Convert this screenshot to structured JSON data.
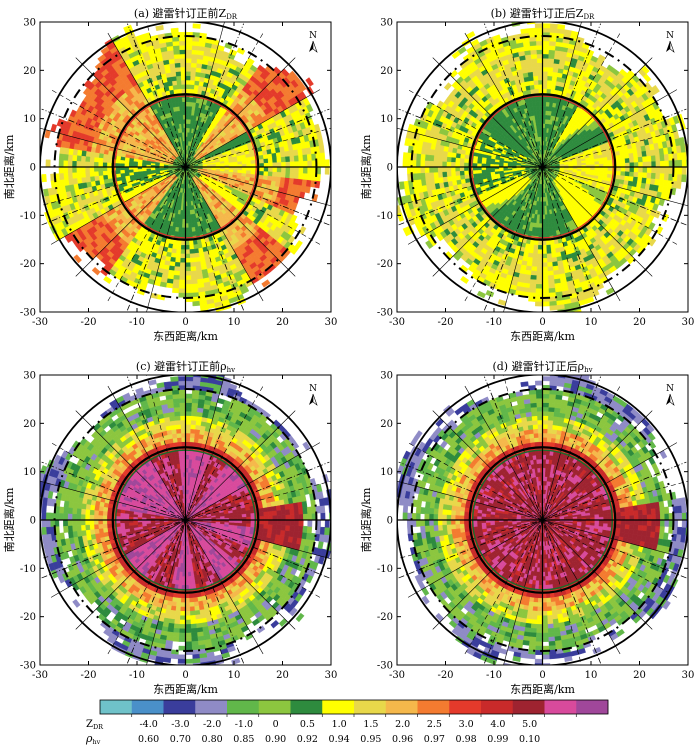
{
  "figure": {
    "axis_xlabel": "东西距离/km",
    "axis_ylabel": "南北距离/km",
    "north_label": "N"
  },
  "chart_data": [
    {
      "type": "heatmap",
      "panel": "a",
      "title": "(a) 避雷针订正前Z",
      "title_sub": "DR",
      "variable": "ZDR",
      "corrected": false,
      "xlabel": "东西距离/km",
      "ylabel": "南北距离/km",
      "xlim": [
        -30,
        30
      ],
      "ylim": [
        -30,
        30
      ],
      "xticks": [
        -30,
        -20,
        -10,
        0,
        10,
        20,
        30
      ],
      "yticks": [
        -30,
        -20,
        -10,
        0,
        10,
        20,
        30
      ],
      "range_rings_km": [
        15,
        30
      ]
    },
    {
      "type": "heatmap",
      "panel": "b",
      "title": "(b) 避雷针订正后Z",
      "title_sub": "DR",
      "variable": "ZDR",
      "corrected": true,
      "xlabel": "东西距离/km",
      "ylabel": "南北距离/km",
      "xlim": [
        -30,
        30
      ],
      "ylim": [
        -30,
        30
      ],
      "xticks": [
        -30,
        -20,
        -10,
        0,
        10,
        20,
        30
      ],
      "yticks": [
        -30,
        -20,
        -10,
        0,
        10,
        20,
        30
      ],
      "range_rings_km": [
        15,
        30
      ]
    },
    {
      "type": "heatmap",
      "panel": "c",
      "title": "(c) 避雷针订正前ρ",
      "title_sub": "hv",
      "variable": "rhohv",
      "corrected": false,
      "xlabel": "东西距离/km",
      "ylabel": "南北距离/km",
      "xlim": [
        -30,
        30
      ],
      "ylim": [
        -30,
        30
      ],
      "xticks": [
        -30,
        -20,
        -10,
        0,
        10,
        20,
        30
      ],
      "yticks": [
        -30,
        -20,
        -10,
        0,
        10,
        20,
        30
      ],
      "range_rings_km": [
        15,
        30
      ]
    },
    {
      "type": "heatmap",
      "panel": "d",
      "title": "(d) 避雷针订正后ρ",
      "title_sub": "hv",
      "variable": "rhohv",
      "corrected": true,
      "xlabel": "东西距离/km",
      "ylabel": "南北距离/km",
      "xlim": [
        -30,
        30
      ],
      "ylim": [
        -30,
        30
      ],
      "xticks": [
        -30,
        -20,
        -10,
        0,
        10,
        20,
        30
      ],
      "yticks": [
        -30,
        -20,
        -10,
        0,
        10,
        20,
        30
      ],
      "range_rings_km": [
        15,
        30
      ]
    }
  ],
  "colorbar": {
    "zdr_label": "Z",
    "zdr_label_sub": "DR",
    "rho_label": "ρ",
    "rho_label_sub": "hv",
    "colors": [
      "#6fc2c9",
      "#4a90c9",
      "#3a3d9c",
      "#8f8bc6",
      "#61b74a",
      "#8cc63f",
      "#2e8b3e",
      "#ffff00",
      "#e8d84a",
      "#f5b84b",
      "#f47b30",
      "#e43a2b",
      "#c92a2a",
      "#9e2330",
      "#d84a9c",
      "#a0479a"
    ],
    "zdr_ticks": [
      "-4.0",
      "-3.0",
      "-2.0",
      "-1.0",
      "0",
      "0.5",
      "1.0",
      "1.5",
      "2.0",
      "2.5",
      "3.0",
      "4.0",
      "5.0"
    ],
    "rho_ticks": [
      "0.60",
      "0.70",
      "0.80",
      "0.85",
      "0.90",
      "0.92",
      "0.94",
      "0.95",
      "0.96",
      "0.97",
      "0.98",
      "0.99",
      "0.10"
    ]
  }
}
